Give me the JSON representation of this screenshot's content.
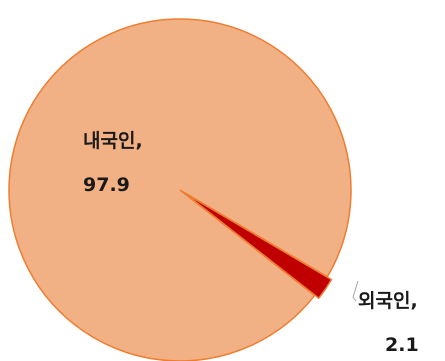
{
  "chart_data": {
    "type": "pie",
    "categories": [
      "내국인",
      "외국인"
    ],
    "values": [
      97.9,
      2.1
    ],
    "labels": [
      {
        "name": "내국인,",
        "value": "97.9"
      },
      {
        "name": "외국인,",
        "value": "2.1"
      }
    ],
    "colors": [
      "#f2b184",
      "#c00000"
    ],
    "edge_colors": [
      "#ed7d31",
      "#ed7d31"
    ],
    "exploded_slice": "외국인",
    "legend": "none"
  }
}
